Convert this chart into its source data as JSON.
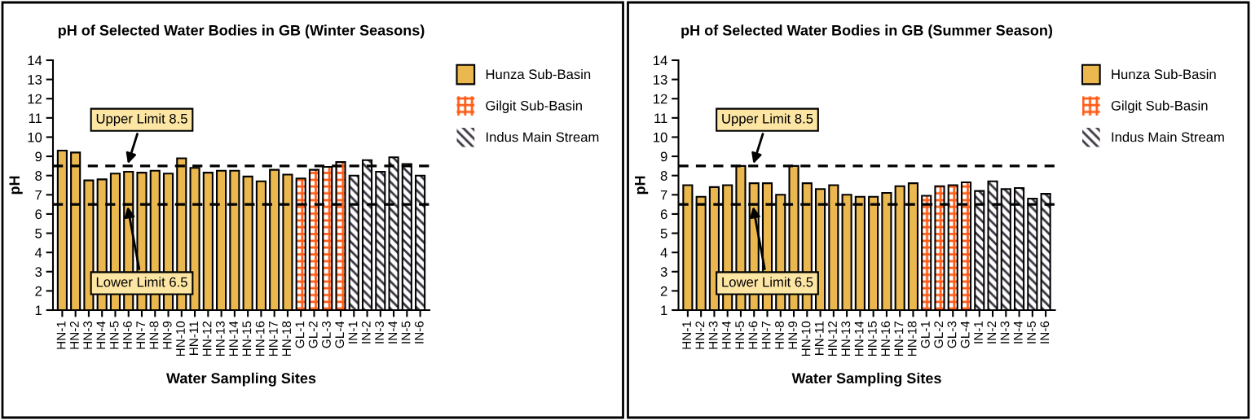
{
  "chart_data": [
    {
      "type": "bar",
      "title": "pH of Selected Water Bodies in GB (Winter Seasons)",
      "xlabel": "Water Sampling Sites",
      "ylabel": "pH",
      "categories": [
        "HN-1",
        "HN-2",
        "HN-3",
        "HN-4",
        "HN-5",
        "HN-6",
        "HN-7",
        "HN-8",
        "HN-9",
        "HN-10",
        "HN-11",
        "HN-12",
        "HN-13",
        "HN-14",
        "HN-15",
        "HN-16",
        "HN-17",
        "HN-18",
        "GL-1",
        "GL-2",
        "GL-3",
        "GL-4",
        "IN-1",
        "IN-2",
        "IN-3",
        "IN-4",
        "IN-5",
        "IN-6"
      ],
      "series": [
        {
          "name": "Hunza Sub-Basin",
          "color": "#ebb84f",
          "values": [
            9.3,
            9.2,
            7.75,
            7.8,
            8.1,
            8.2,
            8.15,
            8.25,
            8.1,
            8.9,
            8.4,
            8.15,
            8.25,
            8.25,
            7.95,
            7.7,
            8.3,
            8.05,
            null,
            null,
            null,
            null,
            null,
            null,
            null,
            null,
            null,
            null
          ]
        },
        {
          "name": "Gilgit Sub-Basin",
          "color": "#ff5a14",
          "values": [
            null,
            null,
            null,
            null,
            null,
            null,
            null,
            null,
            null,
            null,
            null,
            null,
            null,
            null,
            null,
            null,
            null,
            null,
            7.85,
            8.3,
            8.45,
            8.7,
            null,
            null,
            null,
            null,
            null,
            null
          ]
        },
        {
          "name": "Indus Main Stream",
          "color": "#3a3340",
          "values": [
            null,
            null,
            null,
            null,
            null,
            null,
            null,
            null,
            null,
            null,
            null,
            null,
            null,
            null,
            null,
            null,
            null,
            null,
            null,
            null,
            null,
            null,
            8.0,
            8.8,
            8.2,
            8.95,
            8.6,
            8.0
          ]
        }
      ],
      "ylim": [
        1,
        14
      ],
      "yticks": [
        1,
        2,
        3,
        4,
        5,
        6,
        7,
        8,
        9,
        10,
        11,
        12,
        13,
        14
      ],
      "grid": false,
      "legend": "top right",
      "ref_lines": [
        {
          "axis": "y",
          "value": 8.5,
          "label": "Upper Limit 8.5",
          "line_style": "dashed",
          "color": "#000000"
        },
        {
          "axis": "y",
          "value": 6.5,
          "label": "Lower Limit 6.5",
          "line_style": "dashed",
          "color": "#000000"
        }
      ]
    },
    {
      "type": "bar",
      "title": "pH of Selected Water Bodies in GB (Summer Season)",
      "xlabel": "Water Sampling Sites",
      "ylabel": "pH",
      "categories": [
        "HN-1",
        "HN-2",
        "HN-3",
        "HN-4",
        "HN-5",
        "HN-6",
        "HN-7",
        "HN-8",
        "HN-9",
        "HN-10",
        "HN-11",
        "HN-12",
        "HN-13",
        "HN-14",
        "HN-15",
        "HN-16",
        "HN-17",
        "HN-18",
        "GL-1",
        "GL-2",
        "GL-3",
        "GL-4",
        "IN-1",
        "IN-2",
        "IN-3",
        "IN-4",
        "IN-5",
        "IN-6"
      ],
      "series": [
        {
          "name": "Hunza Sub-Basin",
          "color": "#ebb84f",
          "values": [
            7.5,
            6.9,
            7.4,
            7.5,
            8.5,
            7.6,
            7.6,
            7.0,
            8.5,
            7.6,
            7.3,
            7.5,
            7.0,
            6.9,
            6.9,
            7.1,
            7.45,
            7.6,
            null,
            null,
            null,
            null,
            null,
            null,
            null,
            null,
            null,
            null
          ]
        },
        {
          "name": "Gilgit Sub-Basin",
          "color": "#ff5a14",
          "values": [
            null,
            null,
            null,
            null,
            null,
            null,
            null,
            null,
            null,
            null,
            null,
            null,
            null,
            null,
            null,
            null,
            null,
            null,
            6.95,
            7.45,
            7.5,
            7.65,
            null,
            null,
            null,
            null,
            null,
            null
          ]
        },
        {
          "name": "Indus Main Stream",
          "color": "#3a3340",
          "values": [
            null,
            null,
            null,
            null,
            null,
            null,
            null,
            null,
            null,
            null,
            null,
            null,
            null,
            null,
            null,
            null,
            null,
            null,
            null,
            null,
            null,
            null,
            7.2,
            7.7,
            7.3,
            7.35,
            6.8,
            7.05
          ]
        }
      ],
      "ylim": [
        1,
        14
      ],
      "yticks": [
        1,
        2,
        3,
        4,
        5,
        6,
        7,
        8,
        9,
        10,
        11,
        12,
        13,
        14
      ],
      "grid": false,
      "legend": "top right",
      "ref_lines": [
        {
          "axis": "y",
          "value": 8.5,
          "label": "Upper Limit 8.5",
          "line_style": "dashed",
          "color": "#000000"
        },
        {
          "axis": "y",
          "value": 6.5,
          "label": "Lower Limit 6.5",
          "line_style": "dashed",
          "color": "#000000"
        }
      ]
    }
  ]
}
